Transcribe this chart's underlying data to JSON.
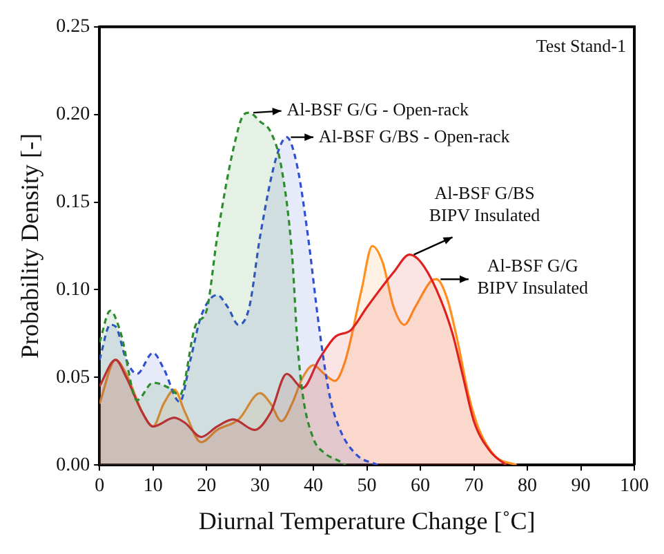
{
  "chart_data": {
    "type": "area",
    "xlabel": "Diurnal Temperature Change [˚C]",
    "ylabel": "Probability Density [-]",
    "annotations": [
      "Test Stand-1"
    ],
    "xlim": [
      0,
      100
    ],
    "xticks": [
      0,
      10,
      20,
      30,
      40,
      50,
      60,
      70,
      80,
      90,
      100
    ],
    "ylim": [
      0,
      0.25
    ],
    "yticks": [
      {
        "value": 0,
        "label": "0.00"
      },
      0.05,
      {
        "value": 0.1,
        "label": "0.10"
      },
      0.15,
      {
        "value": 0.2,
        "label": "0.20"
      },
      0.25
    ],
    "grid": false,
    "legend": false,
    "marker": "none",
    "series": [
      {
        "name": "Al-BSF G/G - Open-rack",
        "color": "#2e8b2e",
        "line_style": "dashed",
        "x": [
          0,
          2,
          4,
          7,
          10,
          13,
          15,
          18,
          20,
          22,
          25,
          27,
          28,
          30,
          32,
          34,
          36,
          37,
          38,
          40,
          42,
          45,
          46
        ],
        "values": [
          0.07,
          0.088,
          0.075,
          0.037,
          0.047,
          0.044,
          0.04,
          0.08,
          0.088,
          0.13,
          0.18,
          0.2,
          0.201,
          0.196,
          0.19,
          0.17,
          0.12,
          0.07,
          0.04,
          0.015,
          0.007,
          0.002,
          0
        ]
      },
      {
        "name": "Al-BSF G/BS - Open-rack",
        "color": "#3050d0",
        "line_style": "dashed",
        "x": [
          0,
          2,
          3,
          5,
          7,
          10,
          12,
          15,
          17,
          19,
          22,
          24,
          26,
          28,
          30,
          33,
          35,
          37,
          39,
          41,
          43,
          45,
          48,
          52
        ],
        "values": [
          0.06,
          0.08,
          0.079,
          0.06,
          0.052,
          0.064,
          0.055,
          0.036,
          0.06,
          0.085,
          0.097,
          0.09,
          0.08,
          0.09,
          0.13,
          0.175,
          0.187,
          0.17,
          0.13,
          0.08,
          0.04,
          0.02,
          0.006,
          0
        ]
      },
      {
        "name": "Al-BSF G/BS\nBIPV Insulated",
        "color": "#e02020",
        "line_style": "solid",
        "x": [
          0,
          3,
          5,
          8,
          10,
          14,
          16,
          19,
          22,
          25,
          29,
          32,
          35,
          38,
          41,
          44,
          47,
          50,
          55,
          58,
          60,
          63,
          66,
          68,
          70,
          73,
          76
        ],
        "values": [
          0.045,
          0.06,
          0.05,
          0.03,
          0.022,
          0.027,
          0.024,
          0.016,
          0.022,
          0.026,
          0.02,
          0.03,
          0.052,
          0.044,
          0.06,
          0.073,
          0.077,
          0.09,
          0.11,
          0.12,
          0.116,
          0.1,
          0.075,
          0.05,
          0.025,
          0.008,
          0
        ]
      },
      {
        "name": "Al-BSF G/G\nBIPV Insulated",
        "color": "#ff9020",
        "line_style": "solid",
        "x": [
          0,
          3,
          5,
          8,
          10,
          12,
          14,
          16,
          19,
          22,
          26,
          30,
          32,
          34,
          36,
          38,
          40,
          42,
          44,
          46,
          49,
          51,
          53,
          55,
          57,
          59,
          62,
          63,
          65,
          67,
          69,
          71,
          74,
          78
        ],
        "values": [
          0.035,
          0.06,
          0.052,
          0.03,
          0.022,
          0.035,
          0.043,
          0.03,
          0.013,
          0.02,
          0.026,
          0.041,
          0.035,
          0.025,
          0.035,
          0.05,
          0.057,
          0.052,
          0.048,
          0.06,
          0.1,
          0.125,
          0.115,
          0.09,
          0.08,
          0.09,
          0.105,
          0.106,
          0.095,
          0.07,
          0.04,
          0.02,
          0.005,
          0
        ]
      }
    ]
  }
}
